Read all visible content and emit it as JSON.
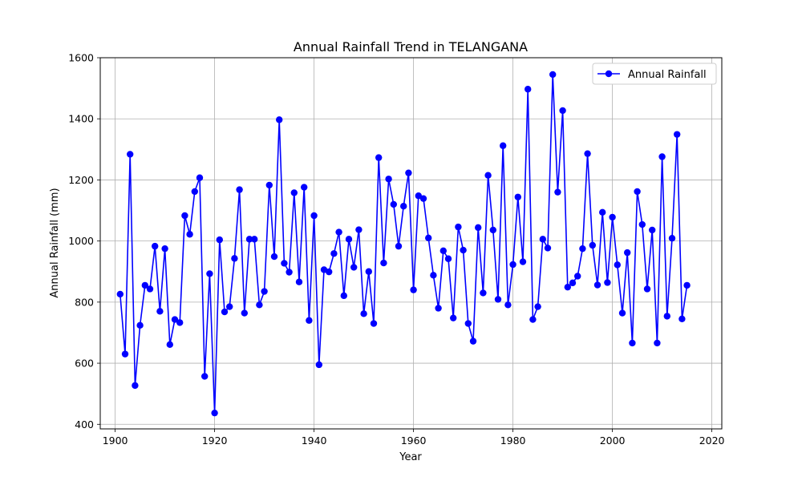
{
  "chart_data": {
    "type": "line",
    "title": "Annual Rainfall Trend in TELANGANA",
    "xlabel": "Year",
    "ylabel": "Annual Rainfall (mm)",
    "xlim": [
      1897,
      2022
    ],
    "ylim": [
      385,
      1600
    ],
    "xticks": [
      1900,
      1920,
      1940,
      1960,
      1980,
      2000,
      2020
    ],
    "yticks": [
      400,
      600,
      800,
      1000,
      1200,
      1400,
      1600
    ],
    "grid": true,
    "legend_position": "top-right",
    "series": [
      {
        "name": "Annual Rainfall",
        "color": "#0000ff",
        "marker": "circle",
        "x": [
          1901,
          1902,
          1903,
          1904,
          1905,
          1906,
          1907,
          1908,
          1909,
          1910,
          1911,
          1912,
          1913,
          1914,
          1915,
          1916,
          1917,
          1918,
          1919,
          1920,
          1921,
          1922,
          1923,
          1924,
          1925,
          1926,
          1927,
          1928,
          1929,
          1930,
          1931,
          1932,
          1933,
          1934,
          1935,
          1936,
          1937,
          1938,
          1939,
          1940,
          1941,
          1942,
          1943,
          1944,
          1945,
          1946,
          1947,
          1948,
          1949,
          1950,
          1951,
          1952,
          1953,
          1954,
          1955,
          1956,
          1957,
          1958,
          1959,
          1960,
          1961,
          1962,
          1963,
          1964,
          1965,
          1966,
          1967,
          1968,
          1969,
          1970,
          1971,
          1972,
          1973,
          1974,
          1975,
          1976,
          1977,
          1978,
          1979,
          1980,
          1981,
          1982,
          1983,
          1984,
          1985,
          1986,
          1987,
          1988,
          1989,
          1990,
          1991,
          1992,
          1993,
          1994,
          1995,
          1996,
          1997,
          1998,
          1999,
          2000,
          2001,
          2002,
          2003,
          2004,
          2005,
          2006,
          2007,
          2008,
          2009,
          2010,
          2011,
          2012,
          2013,
          2014,
          2015
        ],
        "y": [
          826,
          630,
          1284,
          527,
          724,
          855,
          843,
          983,
          770,
          975,
          661,
          743,
          733,
          1083,
          1022,
          1162,
          1207,
          557,
          893,
          437,
          1004,
          768,
          785,
          943,
          1168,
          764,
          1006,
          1006,
          791,
          835,
          1183,
          949,
          1397,
          927,
          898,
          1158,
          866,
          1176,
          740,
          1083,
          595,
          906,
          899,
          959,
          1029,
          821,
          1006,
          914,
          1037,
          762,
          900,
          730,
          1273,
          928,
          1203,
          1120,
          983,
          1114,
          1223,
          840,
          1148,
          1139,
          1010,
          888,
          780,
          968,
          942,
          748,
          1046,
          970,
          730,
          672,
          1044,
          830,
          1215,
          1036,
          809,
          1312,
          791,
          923,
          1144,
          932,
          1497,
          743,
          785,
          1006,
          977,
          1545,
          1160,
          1427,
          849,
          863,
          885,
          975,
          1286,
          986,
          856,
          1094,
          864,
          1078,
          922,
          764,
          962,
          666,
          1162,
          1054,
          843,
          1036,
          666,
          1276,
          754,
          1009,
          1349,
          745,
          855
        ]
      }
    ]
  }
}
